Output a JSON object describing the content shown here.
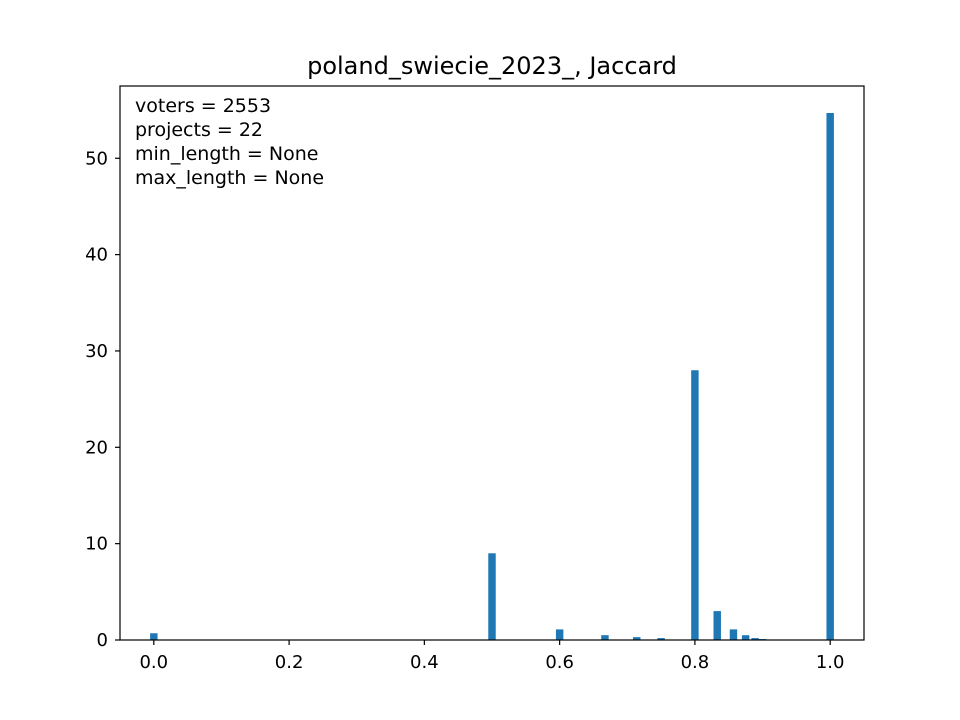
{
  "chart_data": {
    "type": "bar",
    "title": "poland_swiecie_2023_, Jaccard",
    "xlabel": "",
    "ylabel": "",
    "xlim": [
      -0.05,
      1.05
    ],
    "ylim": [
      0,
      57.5
    ],
    "bar_width": 0.011,
    "bar_color": "#1f77b4",
    "x_ticks": [
      {
        "value": 0.0,
        "label": "0.0"
      },
      {
        "value": 0.2,
        "label": "0.2"
      },
      {
        "value": 0.4,
        "label": "0.4"
      },
      {
        "value": 0.6,
        "label": "0.6"
      },
      {
        "value": 0.8,
        "label": "0.8"
      },
      {
        "value": 1.0,
        "label": "1.0"
      }
    ],
    "y_ticks": [
      {
        "value": 0,
        "label": "0"
      },
      {
        "value": 10,
        "label": "10"
      },
      {
        "value": 20,
        "label": "20"
      },
      {
        "value": 30,
        "label": "30"
      },
      {
        "value": 40,
        "label": "40"
      },
      {
        "value": 50,
        "label": "50"
      }
    ],
    "bars": [
      {
        "x": 0.0,
        "value": 0.7
      },
      {
        "x": 0.25,
        "value": 0.05
      },
      {
        "x": 0.5,
        "value": 9.0
      },
      {
        "x": 0.571,
        "value": 0.05
      },
      {
        "x": 0.6,
        "value": 1.1
      },
      {
        "x": 0.667,
        "value": 0.5
      },
      {
        "x": 0.714,
        "value": 0.3
      },
      {
        "x": 0.75,
        "value": 0.2
      },
      {
        "x": 0.8,
        "value": 28.0
      },
      {
        "x": 0.833,
        "value": 3.0
      },
      {
        "x": 0.857,
        "value": 1.1
      },
      {
        "x": 0.875,
        "value": 0.5
      },
      {
        "x": 0.889,
        "value": 0.2
      },
      {
        "x": 0.9,
        "value": 0.1
      },
      {
        "x": 1.0,
        "value": 54.7
      }
    ],
    "annotations": [
      "voters = 2553",
      "projects = 22",
      "min_length = None",
      "max_length = None"
    ]
  }
}
